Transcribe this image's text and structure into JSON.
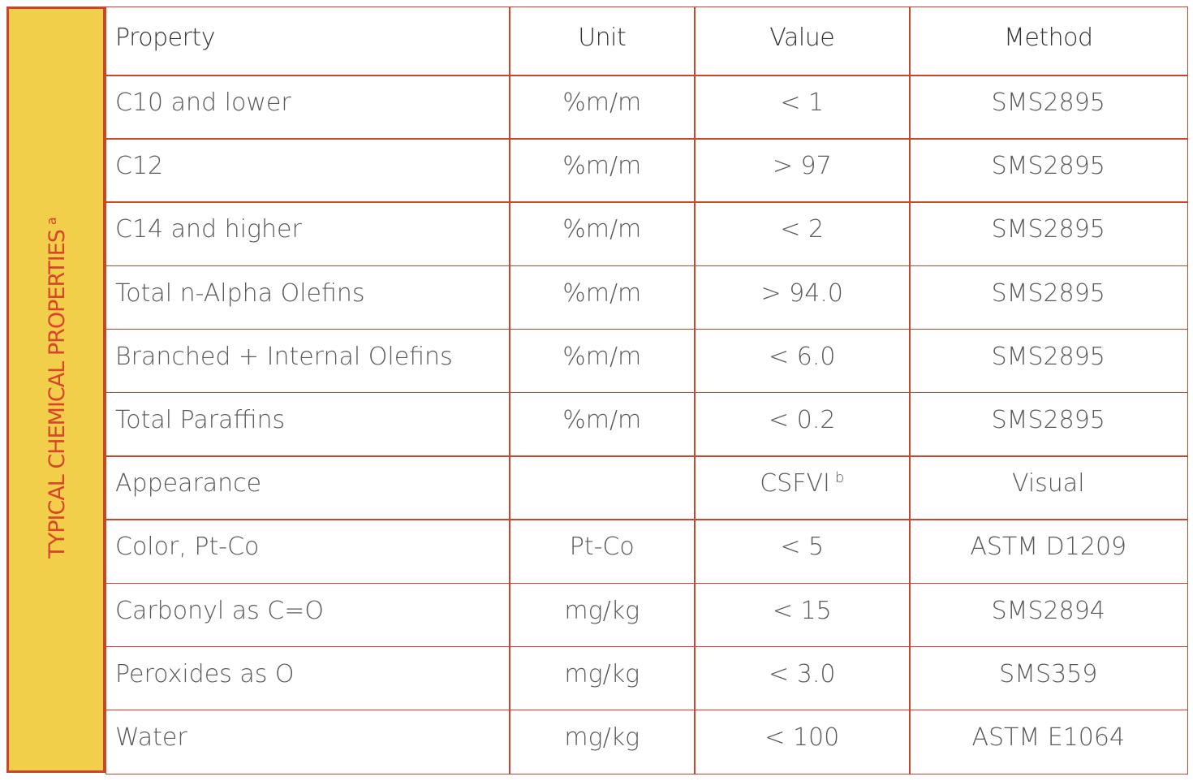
{
  "side": {
    "label": "TYPICAL CHEMICAL PROPERTIES",
    "note": "a"
  },
  "table": {
    "header": [
      "Property",
      "Unit",
      "Value",
      "Method"
    ],
    "rows": [
      [
        "C10 and lower",
        "%m/m",
        "< 1",
        "SMS2895"
      ],
      [
        "C12",
        "%m/m",
        "> 97",
        "SMS2895"
      ],
      [
        "C14 and higher",
        "%m/m",
        "< 2",
        "SMS2895"
      ],
      [
        "Total n-Alpha Olefins",
        "%m/m",
        "> 94.0",
        "SMS2895"
      ],
      [
        "Branched + Internal Olefins",
        "%m/m",
        "< 6.0",
        "SMS2895"
      ],
      [
        "Total Paraffins",
        "%m/m",
        "< 0.2",
        "SMS2895"
      ],
      [
        "Appearance",
        null,
        {
          "text": "CSFVI",
          "sup": "b"
        },
        "Visual"
      ],
      [
        "Color, Pt-Co",
        "Pt-Co",
        "< 5",
        "ASTM D1209"
      ],
      [
        "Carbonyl as C=O",
        "mg/kg",
        "< 15",
        "SMS2894"
      ],
      [
        "Peroxides as O",
        "mg/kg",
        "< 3.0",
        "SMS359"
      ],
      [
        "Water",
        "mg/kg",
        "< 100",
        "ASTM E1064"
      ]
    ]
  }
}
